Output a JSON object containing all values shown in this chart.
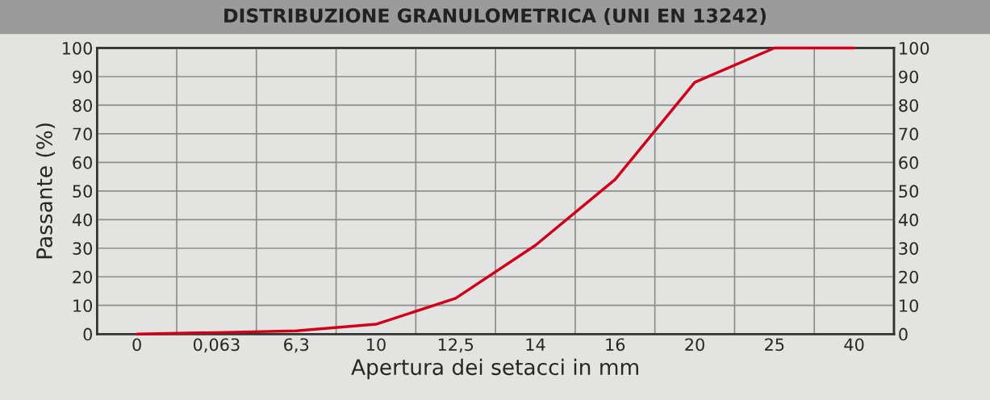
{
  "chart_data": {
    "type": "line",
    "title": "DISTRIBUZIONE GRANULOMETRICA (UNI EN 13242)",
    "xlabel": "Apertura dei setacci in mm",
    "ylabel": "Passante (%)",
    "categories": [
      "0",
      "0,063",
      "6,3",
      "10",
      "12,5",
      "14",
      "16",
      "20",
      "25",
      "40"
    ],
    "series": [
      {
        "color": "#d0021b",
        "values": [
          0,
          0.5,
          1.1,
          3.4,
          12.5,
          31,
          54,
          88,
          100,
          100
        ]
      }
    ],
    "ylim": [
      0,
      100
    ],
    "yticks": [
      0,
      10,
      20,
      30,
      40,
      50,
      60,
      70,
      80,
      90,
      100
    ],
    "y2lim": [
      0,
      100
    ],
    "y2ticks": [
      0,
      10,
      20,
      30,
      40,
      50,
      60,
      70,
      80,
      90,
      100
    ],
    "grid": true,
    "legend": false,
    "marker": "none",
    "line_style": "solid"
  }
}
